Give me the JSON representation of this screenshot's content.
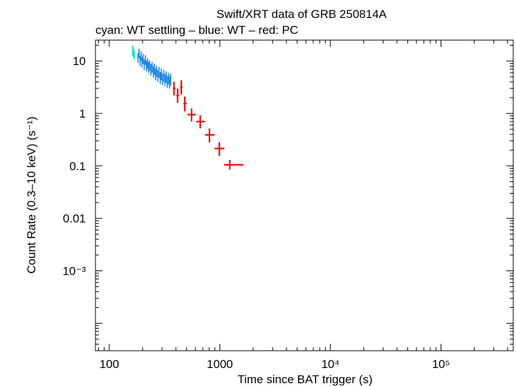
{
  "chart_data": {
    "type": "scatter",
    "title": "Swift/XRT data of GRB 250814A",
    "subtitle": "cyan: WT settling – blue: WT – red: PC",
    "xlabel": "Time since BAT trigger (s)",
    "ylabel": "Count Rate (0.3–10 keV) (s⁻¹)",
    "xscale": "log",
    "yscale": "log",
    "xlim": [
      75,
      450000
    ],
    "ylim": [
      3e-05,
      25
    ],
    "x_ticks": [
      {
        "value": 100,
        "label": "100"
      },
      {
        "value": 1000,
        "label": "1000"
      },
      {
        "value": 10000,
        "label": "10⁴"
      },
      {
        "value": 100000,
        "label": "10⁵"
      }
    ],
    "y_ticks": [
      {
        "value": 10,
        "label": "10"
      },
      {
        "value": 1,
        "label": "1"
      },
      {
        "value": 0.1,
        "label": "0.1"
      },
      {
        "value": 0.01,
        "label": "0.01"
      },
      {
        "value": 0.001,
        "label": "10⁻³"
      }
    ],
    "grid": false,
    "series": [
      {
        "mode": "WT settling",
        "color": "#00e5e5",
        "points": [
          {
            "x": 163,
            "y": 15.5,
            "xerr": 1,
            "yerr_lo": 3.0,
            "yerr_hi": 4.0
          },
          {
            "x": 166,
            "y": 14.0,
            "xerr": 1,
            "yerr_lo": 2.5,
            "yerr_hi": 3.5
          },
          {
            "x": 169,
            "y": 12.5,
            "xerr": 1,
            "yerr_lo": 2.0,
            "yerr_hi": 3.0
          }
        ]
      },
      {
        "mode": "WT",
        "color": "#1a82e8",
        "points": [
          {
            "x": 182,
            "y": 11.5,
            "xerr": 1.5,
            "yerr_lo": 2.3,
            "yerr_hi": 2.8
          },
          {
            "x": 186,
            "y": 14.0,
            "xerr": 1.5,
            "yerr_lo": 2.6,
            "yerr_hi": 3.0
          },
          {
            "x": 190,
            "y": 10.0,
            "xerr": 1.5,
            "yerr_lo": 2.0,
            "yerr_hi": 2.5
          },
          {
            "x": 194,
            "y": 12.5,
            "xerr": 1.5,
            "yerr_lo": 2.4,
            "yerr_hi": 2.8
          },
          {
            "x": 198,
            "y": 9.5,
            "xerr": 1.5,
            "yerr_lo": 2.0,
            "yerr_hi": 2.4
          },
          {
            "x": 202,
            "y": 11.0,
            "xerr": 1.5,
            "yerr_lo": 2.2,
            "yerr_hi": 2.6
          },
          {
            "x": 207,
            "y": 8.5,
            "xerr": 1.5,
            "yerr_lo": 1.8,
            "yerr_hi": 2.2
          },
          {
            "x": 212,
            "y": 10.5,
            "xerr": 1.5,
            "yerr_lo": 2.1,
            "yerr_hi": 2.5
          },
          {
            "x": 217,
            "y": 8.0,
            "xerr": 1.5,
            "yerr_lo": 1.7,
            "yerr_hi": 2.1
          },
          {
            "x": 222,
            "y": 9.0,
            "xerr": 1.5,
            "yerr_lo": 1.9,
            "yerr_hi": 2.3
          },
          {
            "x": 227,
            "y": 7.5,
            "xerr": 1.5,
            "yerr_lo": 1.6,
            "yerr_hi": 2.0
          },
          {
            "x": 232,
            "y": 8.2,
            "xerr": 1.5,
            "yerr_lo": 1.7,
            "yerr_hi": 2.1
          },
          {
            "x": 238,
            "y": 6.8,
            "xerr": 1.5,
            "yerr_lo": 1.5,
            "yerr_hi": 1.9
          },
          {
            "x": 244,
            "y": 7.6,
            "xerr": 1.5,
            "yerr_lo": 1.6,
            "yerr_hi": 2.0
          },
          {
            "x": 250,
            "y": 6.2,
            "xerr": 1.5,
            "yerr_lo": 1.4,
            "yerr_hi": 1.8
          },
          {
            "x": 256,
            "y": 7.0,
            "xerr": 1.5,
            "yerr_lo": 1.5,
            "yerr_hi": 1.9
          },
          {
            "x": 262,
            "y": 5.6,
            "xerr": 1.5,
            "yerr_lo": 1.3,
            "yerr_hi": 1.6
          },
          {
            "x": 268,
            "y": 6.4,
            "xerr": 1.5,
            "yerr_lo": 1.4,
            "yerr_hi": 1.8
          },
          {
            "x": 275,
            "y": 5.2,
            "xerr": 1.5,
            "yerr_lo": 1.2,
            "yerr_hi": 1.5
          },
          {
            "x": 282,
            "y": 6.0,
            "xerr": 1.5,
            "yerr_lo": 1.3,
            "yerr_hi": 1.7
          },
          {
            "x": 289,
            "y": 4.8,
            "xerr": 1.5,
            "yerr_lo": 1.1,
            "yerr_hi": 1.4
          },
          {
            "x": 296,
            "y": 5.6,
            "xerr": 1.5,
            "yerr_lo": 1.3,
            "yerr_hi": 1.6
          },
          {
            "x": 303,
            "y": 4.5,
            "xerr": 1.5,
            "yerr_lo": 1.0,
            "yerr_hi": 1.3
          },
          {
            "x": 311,
            "y": 5.2,
            "xerr": 1.5,
            "yerr_lo": 1.2,
            "yerr_hi": 1.5
          },
          {
            "x": 319,
            "y": 4.3,
            "xerr": 1.5,
            "yerr_lo": 1.0,
            "yerr_hi": 1.3
          },
          {
            "x": 327,
            "y": 4.9,
            "xerr": 1.5,
            "yerr_lo": 1.1,
            "yerr_hi": 1.4
          },
          {
            "x": 335,
            "y": 4.0,
            "xerr": 1.5,
            "yerr_lo": 0.9,
            "yerr_hi": 1.2
          },
          {
            "x": 343,
            "y": 4.6,
            "xerr": 1.5,
            "yerr_lo": 1.0,
            "yerr_hi": 1.3
          },
          {
            "x": 351,
            "y": 3.9,
            "xerr": 1.5,
            "yerr_lo": 0.9,
            "yerr_hi": 1.2
          },
          {
            "x": 359,
            "y": 4.4,
            "xerr": 1.5,
            "yerr_lo": 1.0,
            "yerr_hi": 1.3
          }
        ]
      },
      {
        "mode": "PC",
        "color": "#ff0000",
        "points": [
          {
            "x": 385,
            "y": 3.0,
            "xerr_lo": 8,
            "xerr_hi": 12,
            "yerr_lo": 0.8,
            "yerr_hi": 1.0
          },
          {
            "x": 415,
            "y": 2.2,
            "xerr_lo": 10,
            "xerr_hi": 12,
            "yerr_lo": 0.6,
            "yerr_hi": 0.8
          },
          {
            "x": 448,
            "y": 3.2,
            "xerr_lo": 10,
            "xerr_hi": 12,
            "yerr_lo": 0.9,
            "yerr_hi": 1.1
          },
          {
            "x": 482,
            "y": 1.55,
            "xerr_lo": 14,
            "xerr_hi": 20,
            "yerr_lo": 0.45,
            "yerr_hi": 0.55
          },
          {
            "x": 555,
            "y": 0.95,
            "xerr_lo": 45,
            "xerr_hi": 55,
            "yerr_lo": 0.25,
            "yerr_hi": 0.3
          },
          {
            "x": 665,
            "y": 0.7,
            "xerr_lo": 55,
            "xerr_hi": 70,
            "yerr_lo": 0.18,
            "yerr_hi": 0.22
          },
          {
            "x": 805,
            "y": 0.39,
            "xerr_lo": 70,
            "xerr_hi": 90,
            "yerr_lo": 0.11,
            "yerr_hi": 0.13
          },
          {
            "x": 990,
            "y": 0.215,
            "xerr_lo": 95,
            "xerr_hi": 110,
            "yerr_lo": 0.06,
            "yerr_hi": 0.07
          },
          {
            "x": 1230,
            "y": 0.105,
            "xerr_lo": 140,
            "xerr_hi": 400,
            "yerr_lo": 0.02,
            "yerr_hi": 0.025
          }
        ]
      }
    ]
  }
}
